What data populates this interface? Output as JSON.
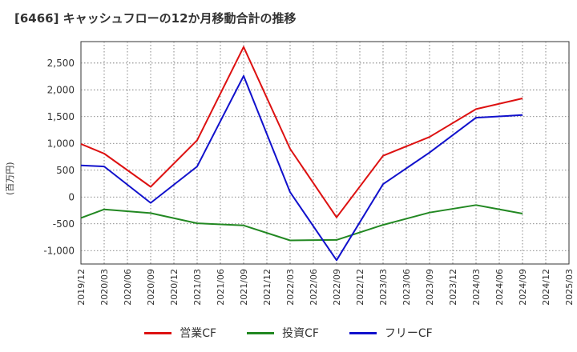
{
  "chart_data": {
    "type": "line",
    "title": "[6466]  キャッシュフローの12か月移動合計の推移",
    "ylabel": "(百万円)",
    "xlabel": "",
    "ylim": [
      -1250,
      2900
    ],
    "yticks": [
      2500,
      2000,
      1500,
      1000,
      500,
      0,
      -500,
      -1000
    ],
    "ytick_labels": [
      "2,500",
      "2,000",
      "1,500",
      "1,000",
      "500",
      "0",
      "-500",
      "-1,000"
    ],
    "categories": [
      "2019/12",
      "2020/03",
      "2020/06",
      "2020/09",
      "2020/12",
      "2021/03",
      "2021/06",
      "2021/09",
      "2021/12",
      "2022/03",
      "2022/06",
      "2022/09",
      "2022/12",
      "2023/03",
      "2023/06",
      "2023/09",
      "2023/12",
      "2024/03",
      "2024/06",
      "2024/09",
      "2024/12",
      "2025/03"
    ],
    "grid": true,
    "legend_position": "bottom",
    "series": [
      {
        "name": "営業CF",
        "color": "#dd1111",
        "values": [
          990,
          810,
          null,
          190,
          null,
          1060,
          null,
          2800,
          null,
          900,
          null,
          -380,
          null,
          770,
          null,
          1120,
          null,
          1640,
          null,
          1840,
          null,
          null
        ]
      },
      {
        "name": "投資CF",
        "color": "#228822",
        "values": [
          -390,
          -230,
          null,
          -300,
          null,
          -490,
          null,
          -530,
          null,
          -810,
          null,
          -800,
          null,
          -520,
          null,
          -290,
          null,
          -150,
          null,
          -310,
          null,
          null
        ]
      },
      {
        "name": "フリーCF",
        "color": "#1111cc",
        "values": [
          590,
          570,
          null,
          -110,
          null,
          570,
          null,
          2260,
          null,
          90,
          null,
          -1180,
          null,
          240,
          null,
          830,
          null,
          1480,
          null,
          1530,
          null,
          null
        ]
      }
    ]
  }
}
